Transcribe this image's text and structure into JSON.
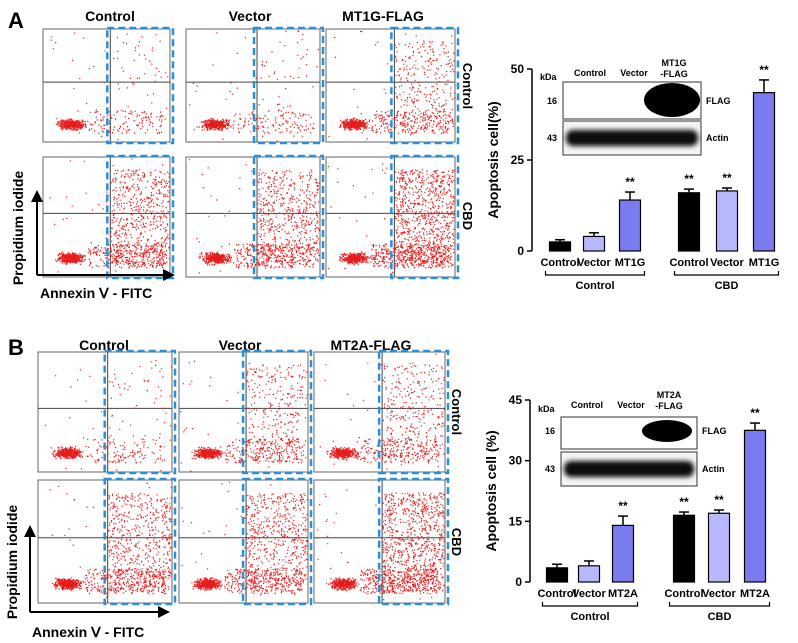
{
  "panels": [
    {
      "letter": "A",
      "col_labels": [
        "Control",
        "Vector",
        "MT1G-FLAG"
      ],
      "row_labels": [
        "Control",
        "CBD"
      ],
      "y_axis_label": "Propidium iodide",
      "x_axis_label": "Annexin Ⅴ - FITC",
      "blot": {
        "kda_label": "kDa",
        "lanes": [
          "Control",
          "Vector",
          "MT1G\n-FLAG"
        ],
        "rows": [
          {
            "kda": "16",
            "label": "FLAG"
          },
          {
            "kda": "43",
            "label": "Actin"
          }
        ]
      }
    },
    {
      "letter": "B",
      "col_labels": [
        "Control",
        "Vector",
        "MT2A-FLAG"
      ],
      "row_labels": [
        "Control",
        "CBD"
      ],
      "y_axis_label": "Propidium iodide",
      "x_axis_label": "Annexin Ⅴ - FITC",
      "blot": {
        "kda_label": "kDa",
        "lanes": [
          "Control",
          "Vector",
          "MT2A\n-FLAG"
        ],
        "rows": [
          {
            "kda": "16",
            "label": "FLAG"
          },
          {
            "kda": "43",
            "label": "Actin"
          }
        ]
      }
    }
  ],
  "chart_data": [
    {
      "type": "bar",
      "panel": "A",
      "ylabel": "Apoptosis cell(%)",
      "ylim": [
        0,
        50
      ],
      "yticks": [
        0,
        25,
        50
      ],
      "categories": [
        "Control",
        "Vector",
        "MT1G",
        "Control",
        "Vector",
        "MT1G"
      ],
      "groups": [
        "Control",
        "CBD"
      ],
      "values": [
        2.5,
        4.0,
        14.0,
        16.0,
        16.5,
        43.5
      ],
      "errors": [
        0.6,
        1.0,
        2.2,
        1.0,
        0.8,
        3.5
      ],
      "significance": [
        "",
        "",
        "**",
        "**",
        "**",
        "**"
      ],
      "colors": [
        "#000000",
        "#b8b8ff",
        "#7b7bf0",
        "#000000",
        "#b8b8ff",
        "#7b7bf0"
      ]
    },
    {
      "type": "bar",
      "panel": "B",
      "ylabel": "Apoptosis cell (%)",
      "ylim": [
        0,
        45
      ],
      "yticks": [
        0,
        15,
        30,
        45
      ],
      "categories": [
        "Control",
        "Vector",
        "MT2A",
        "Control",
        "Vector",
        "MT2A"
      ],
      "groups": [
        "Control",
        "CBD"
      ],
      "values": [
        3.5,
        4.0,
        14.0,
        16.5,
        17.0,
        37.5
      ],
      "errors": [
        0.9,
        1.2,
        2.3,
        0.8,
        0.8,
        1.8
      ],
      "significance": [
        "",
        "",
        "**",
        "**",
        "**",
        "**"
      ],
      "colors": [
        "#000000",
        "#b8b8ff",
        "#7b7bf0",
        "#000000",
        "#b8b8ff",
        "#7b7bf0"
      ]
    }
  ]
}
